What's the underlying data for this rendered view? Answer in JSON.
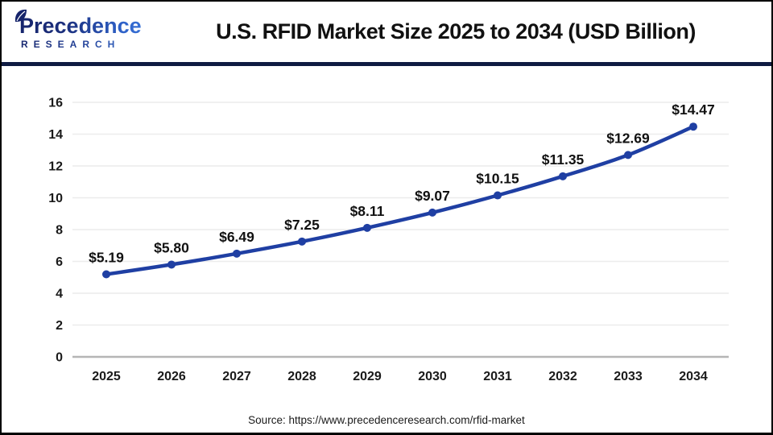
{
  "header": {
    "logo_line1": "Precedence",
    "logo_line2": "RESEARCH",
    "title": "U.S. RFID Market Size 2025 to 2034 (USD Billion)"
  },
  "chart_data": {
    "type": "line",
    "title": "U.S. RFID Market Size 2025 to 2034 (USD Billion)",
    "categories": [
      "2025",
      "2026",
      "2027",
      "2028",
      "2029",
      "2030",
      "2031",
      "2032",
      "2033",
      "2034"
    ],
    "series": [
      {
        "name": "U.S. RFID Market Size (USD Billion)",
        "values": [
          5.19,
          5.8,
          6.49,
          7.25,
          8.11,
          9.07,
          10.15,
          11.35,
          12.69,
          14.47
        ],
        "labels": [
          "$5.19",
          "$5.80",
          "$6.49",
          "$7.25",
          "$8.11",
          "$9.07",
          "$10.15",
          "$11.35",
          "$12.69",
          "$14.47"
        ],
        "color": "#1f3fa3"
      }
    ],
    "xlabel": "",
    "ylabel": "",
    "ylim": [
      0,
      16
    ],
    "ytick_step": 2,
    "grid": true,
    "legend_position": "none",
    "gridline_color": "#ececec",
    "baseline_color": "#b5b5b5",
    "tick_label_color": "#1a1a1a",
    "data_label_color": "#111111"
  },
  "footer": {
    "source": "Source: https://www.precedenceresearch.com/rfid-market"
  },
  "colors": {
    "divider_navy": "#0f1b42",
    "logo_navy": "#16246b",
    "logo_blue": "#3f7de0",
    "line_blue": "#1f3fa3"
  }
}
